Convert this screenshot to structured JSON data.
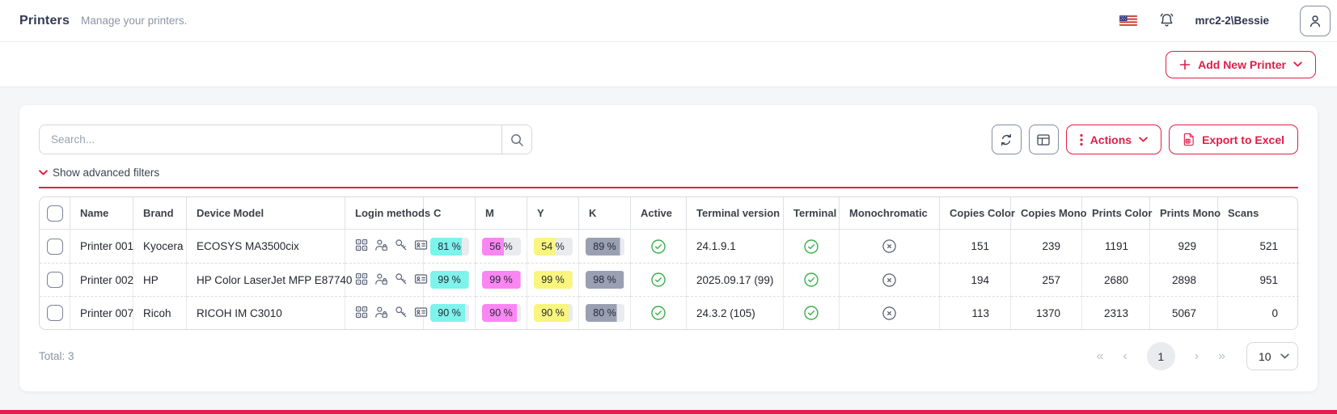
{
  "header": {
    "title": "Printers",
    "subtitle": "Manage your printers.",
    "username": "mrc2-2\\Bessie"
  },
  "toolbar": {
    "add_button": "Add New Printer"
  },
  "controls": {
    "search_placeholder": "Search...",
    "actions_label": "Actions",
    "export_label": "Export to Excel",
    "filters_label": "Show advanced filters"
  },
  "table": {
    "columns": [
      "Name",
      "Brand",
      "Device Model",
      "Login methods",
      "C",
      "M",
      "Y",
      "K",
      "Active",
      "Terminal version",
      "Terminal",
      "Monochromatic",
      "Copies Color",
      "Copies Mono",
      "Prints Color",
      "Prints Mono",
      "Scans"
    ],
    "rows": [
      {
        "name": "Printer 001",
        "brand": "Kyocera",
        "model": "ECOSYS MA3500cix",
        "login_methods": [
          "pin-code",
          "user-lock",
          "key",
          "id-card"
        ],
        "levels": {
          "c": {
            "text": "81 %",
            "pct": 81
          },
          "m": {
            "text": "56 %",
            "pct": 56
          },
          "y": {
            "text": "54 %",
            "pct": 54
          },
          "k": {
            "text": "89 %",
            "pct": 89
          }
        },
        "active": true,
        "terminal_version": "24.1.9.1",
        "terminal": true,
        "monochromatic": false,
        "copies_color": "151",
        "copies_mono": "239",
        "prints_color": "1191",
        "prints_mono": "929",
        "scans": "521"
      },
      {
        "name": "Printer 002",
        "brand": "HP",
        "model": "HP Color LaserJet MFP E87740",
        "login_methods": [
          "pin-code",
          "user-lock",
          "key",
          "id-card"
        ],
        "levels": {
          "c": {
            "text": "99 %",
            "pct": 99
          },
          "m": {
            "text": "99 %",
            "pct": 99
          },
          "y": {
            "text": "99 %",
            "pct": 99
          },
          "k": {
            "text": "98 %",
            "pct": 98
          }
        },
        "active": true,
        "terminal_version": "2025.09.17 (99)",
        "terminal": true,
        "monochromatic": false,
        "copies_color": "194",
        "copies_mono": "257",
        "prints_color": "2680",
        "prints_mono": "2898",
        "scans": "951"
      },
      {
        "name": "Printer 007",
        "brand": "Ricoh",
        "model": "RICOH IM C3010",
        "login_methods": [
          "pin-code",
          "user-lock",
          "key",
          "id-card"
        ],
        "levels": {
          "c": {
            "text": "90 %",
            "pct": 90
          },
          "m": {
            "text": "90 %",
            "pct": 90
          },
          "y": {
            "text": "90 %",
            "pct": 90
          },
          "k": {
            "text": "80 %",
            "pct": 80
          }
        },
        "active": true,
        "terminal_version": "24.3.2 (105)",
        "terminal": true,
        "monochromatic": false,
        "copies_color": "113",
        "copies_mono": "1370",
        "prints_color": "2313",
        "prints_mono": "5067",
        "scans": "0"
      }
    ]
  },
  "pagination": {
    "total_label": "Total: 3",
    "first": "«",
    "prev": "‹",
    "page": "1",
    "next": "›",
    "last": "»",
    "page_size": "10"
  },
  "colors": {
    "accent": "#e11d48",
    "green": "#3aaf4d",
    "badge_empty": "#e9ebef",
    "channel_fills": {
      "c": "#7df3ec",
      "m": "#fb86f3",
      "y": "#f9f57d",
      "k": "#9aa0b2"
    }
  }
}
